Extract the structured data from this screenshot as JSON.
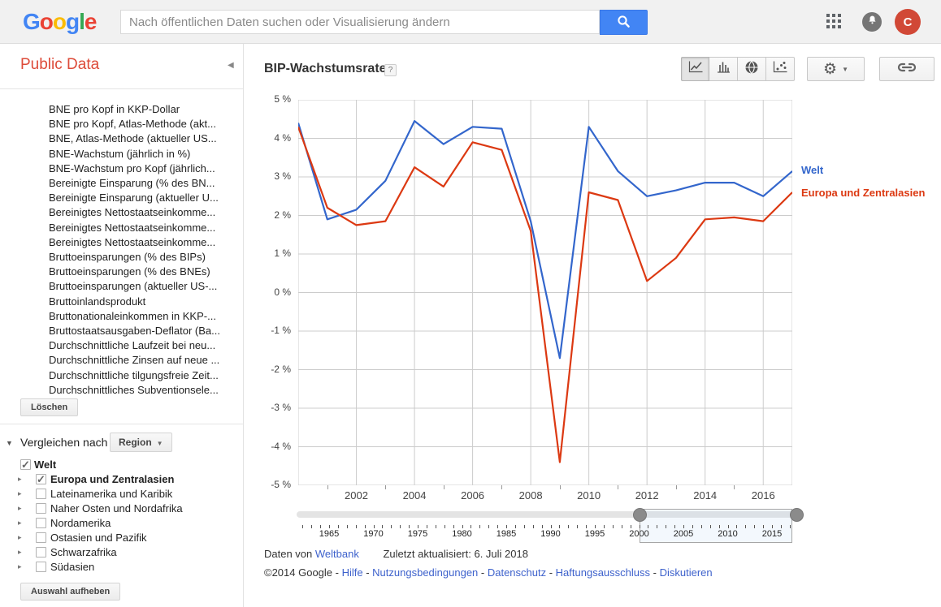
{
  "topbar": {
    "logo_letters": [
      {
        "ch": "G",
        "color": "#4285F4"
      },
      {
        "ch": "o",
        "color": "#EA4335"
      },
      {
        "ch": "o",
        "color": "#FBBC05"
      },
      {
        "ch": "g",
        "color": "#4285F4"
      },
      {
        "ch": "l",
        "color": "#34A853"
      },
      {
        "ch": "e",
        "color": "#EA4335"
      }
    ],
    "search_placeholder": "Nach öffentlichen Daten suchen oder Visualisierung ändern",
    "search_button_color": "#4285f4",
    "avatar_letter": "C",
    "avatar_color": "#d14836"
  },
  "sidebar": {
    "title": "Public Data",
    "indicators": [
      "BNE pro Kopf in KKP-Dollar",
      "BNE pro Kopf, Atlas-Methode (akt...",
      "BNE, Atlas-Methode (aktueller US...",
      "BNE-Wachstum (jährlich in %)",
      "BNE-Wachstum pro Kopf (jährlich...",
      "Bereinigte Einsparung (% des BN...",
      "Bereinigte Einsparung (aktueller U...",
      "Bereinigtes Nettostaatseinkomme...",
      "Bereinigtes Nettostaatseinkomme...",
      "Bereinigtes Nettostaatseinkomme...",
      "Bruttoeinsparungen (% des BIPs)",
      "Bruttoeinsparungen (% des BNEs)",
      "Bruttoeinsparungen (aktueller US-...",
      "Bruttoinlandsprodukt",
      "Bruttonationaleinkommen in KKP-...",
      "Bruttostaatsausgaben-Deflator (Ba...",
      "Durchschnittliche Laufzeit bei neu...",
      "Durchschnittliche Zinsen auf neue ...",
      "Durchschnittliche tilgungsfreie Zeit...",
      "Durchschnittliches Subventionsele..."
    ],
    "clear_button": "Löschen",
    "compare_label": "Vergleichen nach",
    "compare_dropdown": "Region",
    "regions": [
      {
        "label": "Welt",
        "checked": true,
        "bold": true,
        "expander": false
      },
      {
        "label": "Europa und Zentralasien",
        "checked": true,
        "bold": true,
        "expander": true
      },
      {
        "label": "Lateinamerika und Karibik",
        "checked": false,
        "bold": false,
        "expander": true
      },
      {
        "label": "Naher Osten und Nordafrika",
        "checked": false,
        "bold": false,
        "expander": true
      },
      {
        "label": "Nordamerika",
        "checked": false,
        "bold": false,
        "expander": true
      },
      {
        "label": "Ostasien und Pazifik",
        "checked": false,
        "bold": false,
        "expander": true
      },
      {
        "label": "Schwarzafrika",
        "checked": false,
        "bold": false,
        "expander": true
      },
      {
        "label": "Südasien",
        "checked": false,
        "bold": false,
        "expander": true
      }
    ],
    "deselect_button": "Auswahl aufheben"
  },
  "main": {
    "title": "BIP-Wachstumsrate",
    "help_badge": "?"
  },
  "chart_data": {
    "type": "line",
    "title": "BIP-Wachstumsrate",
    "x": [
      2000,
      2001,
      2002,
      2003,
      2004,
      2005,
      2006,
      2007,
      2008,
      2009,
      2010,
      2011,
      2012,
      2013,
      2014,
      2015,
      2016,
      2017
    ],
    "series": [
      {
        "name": "Welt",
        "color": "#3366cc",
        "values": [
          4.4,
          1.9,
          2.15,
          2.9,
          4.45,
          3.85,
          4.3,
          4.25,
          1.85,
          -1.7,
          4.3,
          3.15,
          2.5,
          2.65,
          2.85,
          2.85,
          2.5,
          3.15
        ]
      },
      {
        "name": "Europa und Zentralasien",
        "color": "#dc3912",
        "values": [
          4.3,
          2.2,
          1.75,
          1.85,
          3.25,
          2.75,
          3.9,
          3.7,
          1.6,
          -4.4,
          2.6,
          2.4,
          0.3,
          0.9,
          1.9,
          1.95,
          1.85,
          2.6
        ]
      }
    ],
    "xlim": [
      2000,
      2017
    ],
    "ylim": [
      -5,
      5
    ],
    "xticks": [
      2002,
      2004,
      2006,
      2008,
      2010,
      2012,
      2014,
      2016
    ],
    "yticks": [
      5,
      4,
      3,
      2,
      1,
      0,
      -1,
      -2,
      -3,
      -4,
      -5
    ],
    "ytick_suffix": " %",
    "grid": true,
    "legend_position": "right"
  },
  "timeline": {
    "year_labels": [
      1965,
      1970,
      1975,
      1980,
      1985,
      1990,
      1995,
      2000,
      2005,
      2010,
      2015
    ],
    "minor_tick_start": 1962,
    "minor_tick_end": 2017,
    "selected_start": 2000,
    "selected_end": 2017
  },
  "footer": {
    "source_prefix": "Daten von",
    "source_link": "Weltbank",
    "updated": "Zuletzt aktualisiert: 6. Juli 2018",
    "copyright": "©2014 Google",
    "links": [
      "Hilfe",
      "Nutzungsbedingungen",
      "Datenschutz",
      "Haftungsausschluss",
      "Diskutieren"
    ]
  }
}
